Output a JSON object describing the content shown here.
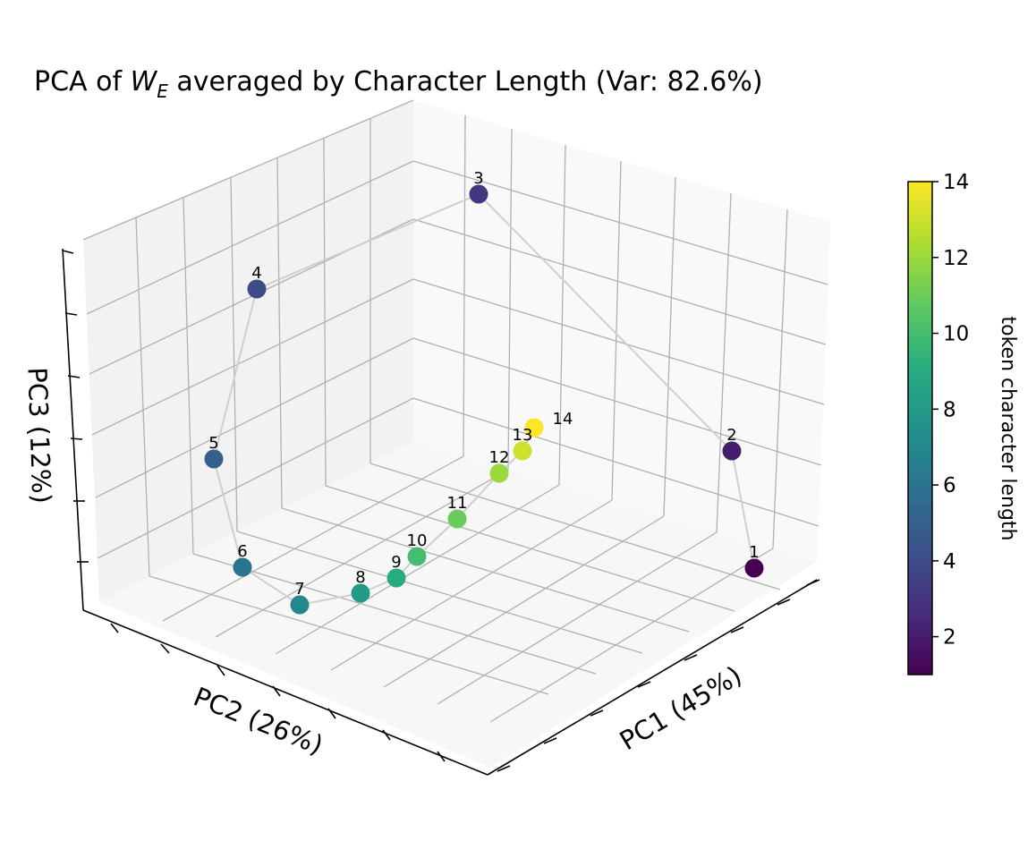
{
  "chart_data": {
    "type": "scatter",
    "projection": "3d",
    "title_prefix": "PCA of ",
    "title_symbol": "W",
    "title_subscript": "E",
    "title_suffix": " averaged by Character Length (Var: 82.6%)",
    "xlabel": "PC1 (45%)",
    "ylabel": "PC2 (26%)",
    "zlabel": "PC3 (12%)",
    "grid": true,
    "points": [
      {
        "label": "1",
        "length": 1
      },
      {
        "label": "2",
        "length": 2
      },
      {
        "label": "3",
        "length": 3
      },
      {
        "label": "4",
        "length": 4
      },
      {
        "label": "5",
        "length": 5
      },
      {
        "label": "6",
        "length": 6
      },
      {
        "label": "7",
        "length": 7
      },
      {
        "label": "8",
        "length": 8
      },
      {
        "label": "9",
        "length": 9
      },
      {
        "label": "10",
        "length": 10
      },
      {
        "label": "11",
        "length": 11
      },
      {
        "label": "12",
        "length": 12
      },
      {
        "label": "13",
        "length": 13
      },
      {
        "label": "14",
        "length": 14
      }
    ],
    "line_connects_points": true,
    "line_color": "#cfcfcf",
    "colormap": "viridis",
    "colorbar": {
      "label": "token character length",
      "range": [
        1,
        14
      ],
      "ticks": [
        "2",
        "4",
        "6",
        "8",
        "10",
        "12",
        "14"
      ],
      "tick_values": [
        2,
        4,
        6,
        8,
        10,
        12,
        14
      ],
      "placement": "right"
    }
  }
}
